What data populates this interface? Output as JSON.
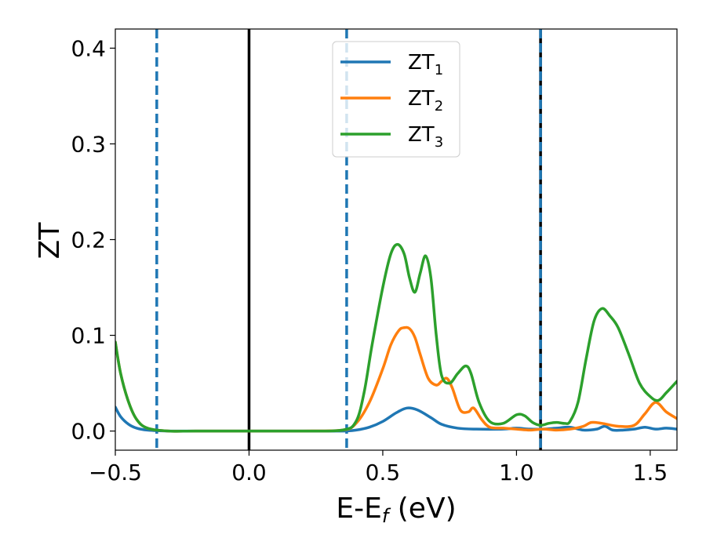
{
  "chart_data": {
    "type": "line",
    "title": "",
    "xlabel": {
      "base": "E-E",
      "sub": "f",
      "suffix": " (eV)"
    },
    "ylabel": "ZT",
    "xlim": [
      -0.5,
      1.6
    ],
    "ylim": [
      -0.02,
      0.42
    ],
    "xticks": [
      -0.5,
      0.0,
      0.5,
      1.0,
      1.5
    ],
    "xtick_labels": [
      "−0.5",
      "0.0",
      "0.5",
      "1.0",
      "1.5"
    ],
    "yticks": [
      0.0,
      0.1,
      0.2,
      0.3,
      0.4
    ],
    "ytick_labels": [
      "0.0",
      "0.1",
      "0.2",
      "0.3",
      "0.4"
    ],
    "grid": false,
    "legend_position": "top-center",
    "vlines": [
      {
        "x": -0.345,
        "style": "dashed",
        "color": "#1f77b4"
      },
      {
        "x": 0.0,
        "style": "solid",
        "color": "#000000"
      },
      {
        "x": 0.365,
        "style": "dashed",
        "color": "#1f77b4"
      },
      {
        "x": 1.09,
        "style": "solid",
        "color": "#000000"
      },
      {
        "x": 1.09,
        "style": "dashed",
        "color": "#1f77b4"
      }
    ],
    "series": [
      {
        "name": "ZT",
        "sub": "1",
        "color": "#1f77b4",
        "x": [
          -0.5,
          -0.48,
          -0.45,
          -0.42,
          -0.38,
          -0.3,
          -0.2,
          0.0,
          0.2,
          0.35,
          0.4,
          0.45,
          0.5,
          0.55,
          0.59,
          0.63,
          0.68,
          0.72,
          0.78,
          0.85,
          0.95,
          1.0,
          1.05,
          1.1,
          1.15,
          1.2,
          1.25,
          1.3,
          1.33,
          1.36,
          1.4,
          1.44,
          1.48,
          1.52,
          1.56,
          1.6
        ],
        "y": [
          0.025,
          0.015,
          0.007,
          0.003,
          0.001,
          0.0,
          0.0,
          0.0,
          0.0,
          0.0,
          0.001,
          0.004,
          0.01,
          0.019,
          0.024,
          0.022,
          0.014,
          0.007,
          0.003,
          0.002,
          0.002,
          0.003,
          0.002,
          0.002,
          0.003,
          0.004,
          0.001,
          0.002,
          0.005,
          0.001,
          0.001,
          0.002,
          0.004,
          0.002,
          0.003,
          0.002
        ]
      },
      {
        "name": "ZT",
        "sub": "2",
        "color": "#ff7f0e",
        "x": [
          -0.5,
          -0.48,
          -0.45,
          -0.42,
          -0.38,
          -0.3,
          -0.2,
          0.0,
          0.2,
          0.35,
          0.4,
          0.45,
          0.5,
          0.53,
          0.56,
          0.58,
          0.6,
          0.62,
          0.64,
          0.67,
          0.7,
          0.72,
          0.74,
          0.76,
          0.79,
          0.82,
          0.84,
          0.87,
          0.9,
          0.95,
          1.0,
          1.05,
          1.1,
          1.15,
          1.2,
          1.25,
          1.28,
          1.32,
          1.38,
          1.44,
          1.48,
          1.52,
          1.56,
          1.6
        ],
        "y": [
          0.093,
          0.06,
          0.03,
          0.012,
          0.003,
          0.0,
          0.0,
          0.0,
          0.0,
          0.001,
          0.008,
          0.03,
          0.065,
          0.09,
          0.105,
          0.108,
          0.107,
          0.098,
          0.08,
          0.055,
          0.048,
          0.052,
          0.055,
          0.045,
          0.022,
          0.02,
          0.024,
          0.012,
          0.004,
          0.003,
          0.002,
          0.001,
          0.002,
          0.001,
          0.002,
          0.005,
          0.009,
          0.008,
          0.005,
          0.006,
          0.018,
          0.03,
          0.02,
          0.013
        ]
      },
      {
        "name": "ZT",
        "sub": "3",
        "color": "#2ca02c",
        "x": [
          -0.5,
          -0.48,
          -0.45,
          -0.42,
          -0.38,
          -0.3,
          -0.2,
          0.0,
          0.2,
          0.35,
          0.4,
          0.43,
          0.46,
          0.5,
          0.53,
          0.555,
          0.58,
          0.6,
          0.62,
          0.64,
          0.66,
          0.68,
          0.7,
          0.72,
          0.75,
          0.78,
          0.81,
          0.83,
          0.86,
          0.9,
          0.95,
          1.0,
          1.03,
          1.06,
          1.09,
          1.12,
          1.15,
          1.18,
          1.2,
          1.23,
          1.26,
          1.29,
          1.32,
          1.35,
          1.38,
          1.42,
          1.46,
          1.5,
          1.53,
          1.56,
          1.6
        ],
        "y": [
          0.093,
          0.06,
          0.03,
          0.012,
          0.003,
          0.0,
          0.0,
          0.0,
          0.0,
          0.001,
          0.01,
          0.04,
          0.09,
          0.15,
          0.185,
          0.195,
          0.185,
          0.16,
          0.145,
          0.165,
          0.183,
          0.16,
          0.1,
          0.058,
          0.05,
          0.06,
          0.068,
          0.06,
          0.03,
          0.01,
          0.008,
          0.017,
          0.016,
          0.009,
          0.006,
          0.008,
          0.009,
          0.008,
          0.01,
          0.03,
          0.075,
          0.115,
          0.128,
          0.12,
          0.108,
          0.08,
          0.05,
          0.036,
          0.032,
          0.04,
          0.052
        ]
      }
    ]
  }
}
